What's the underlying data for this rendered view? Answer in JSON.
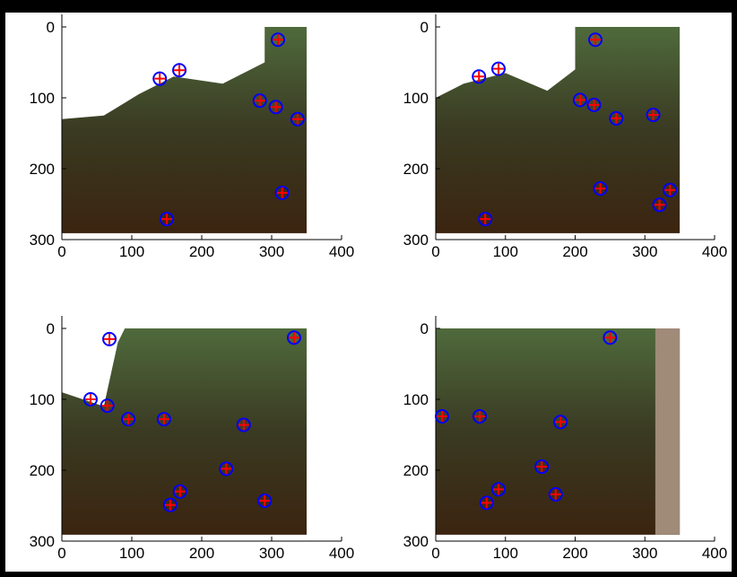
{
  "chart_data": [
    {
      "type": "scatter",
      "x": [
        309,
        140,
        168,
        283,
        306,
        337,
        315,
        150
      ],
      "y": [
        18,
        73,
        61,
        104,
        113,
        130,
        234,
        271
      ],
      "xlim": [
        0,
        400
      ],
      "ylim": [
        0,
        300
      ],
      "xticks": [
        0,
        100,
        200,
        300,
        400
      ],
      "yticks": [
        0,
        100,
        200,
        300
      ],
      "y_reversed": true,
      "marker_color": "#0000ff",
      "cross_color": "#ff0000"
    },
    {
      "type": "scatter",
      "x": [
        229,
        62,
        90,
        207,
        227,
        259,
        312,
        236,
        336,
        321,
        71
      ],
      "y": [
        18,
        70,
        59,
        103,
        110,
        129,
        124,
        228,
        230,
        251,
        271
      ],
      "xlim": [
        0,
        400
      ],
      "ylim": [
        0,
        300
      ],
      "xticks": [
        0,
        100,
        200,
        300,
        400
      ],
      "yticks": [
        0,
        100,
        200,
        300
      ],
      "y_reversed": true,
      "marker_color": "#0000ff",
      "cross_color": "#ff0000"
    },
    {
      "type": "scatter",
      "x": [
        68,
        41,
        65,
        95,
        146,
        260,
        235,
        169,
        290,
        155,
        332
      ],
      "y": [
        15,
        100,
        109,
        128,
        128,
        136,
        198,
        230,
        243,
        249,
        13
      ],
      "xlim": [
        0,
        400
      ],
      "ylim": [
        0,
        300
      ],
      "xticks": [
        0,
        100,
        200,
        300,
        400
      ],
      "yticks": [
        0,
        100,
        200,
        300
      ],
      "y_reversed": true,
      "marker_color": "#0000ff",
      "cross_color": "#ff0000"
    },
    {
      "type": "scatter",
      "x": [
        250,
        9,
        63,
        179,
        152,
        90,
        73,
        172
      ],
      "y": [
        13,
        124,
        124,
        132,
        195,
        227,
        246,
        234
      ],
      "xlim": [
        0,
        400
      ],
      "ylim": [
        0,
        300
      ],
      "xticks": [
        0,
        100,
        200,
        300,
        400
      ],
      "yticks": [
        0,
        100,
        200,
        300
      ],
      "y_reversed": true,
      "marker_color": "#0000ff",
      "cross_color": "#ff0000"
    }
  ]
}
